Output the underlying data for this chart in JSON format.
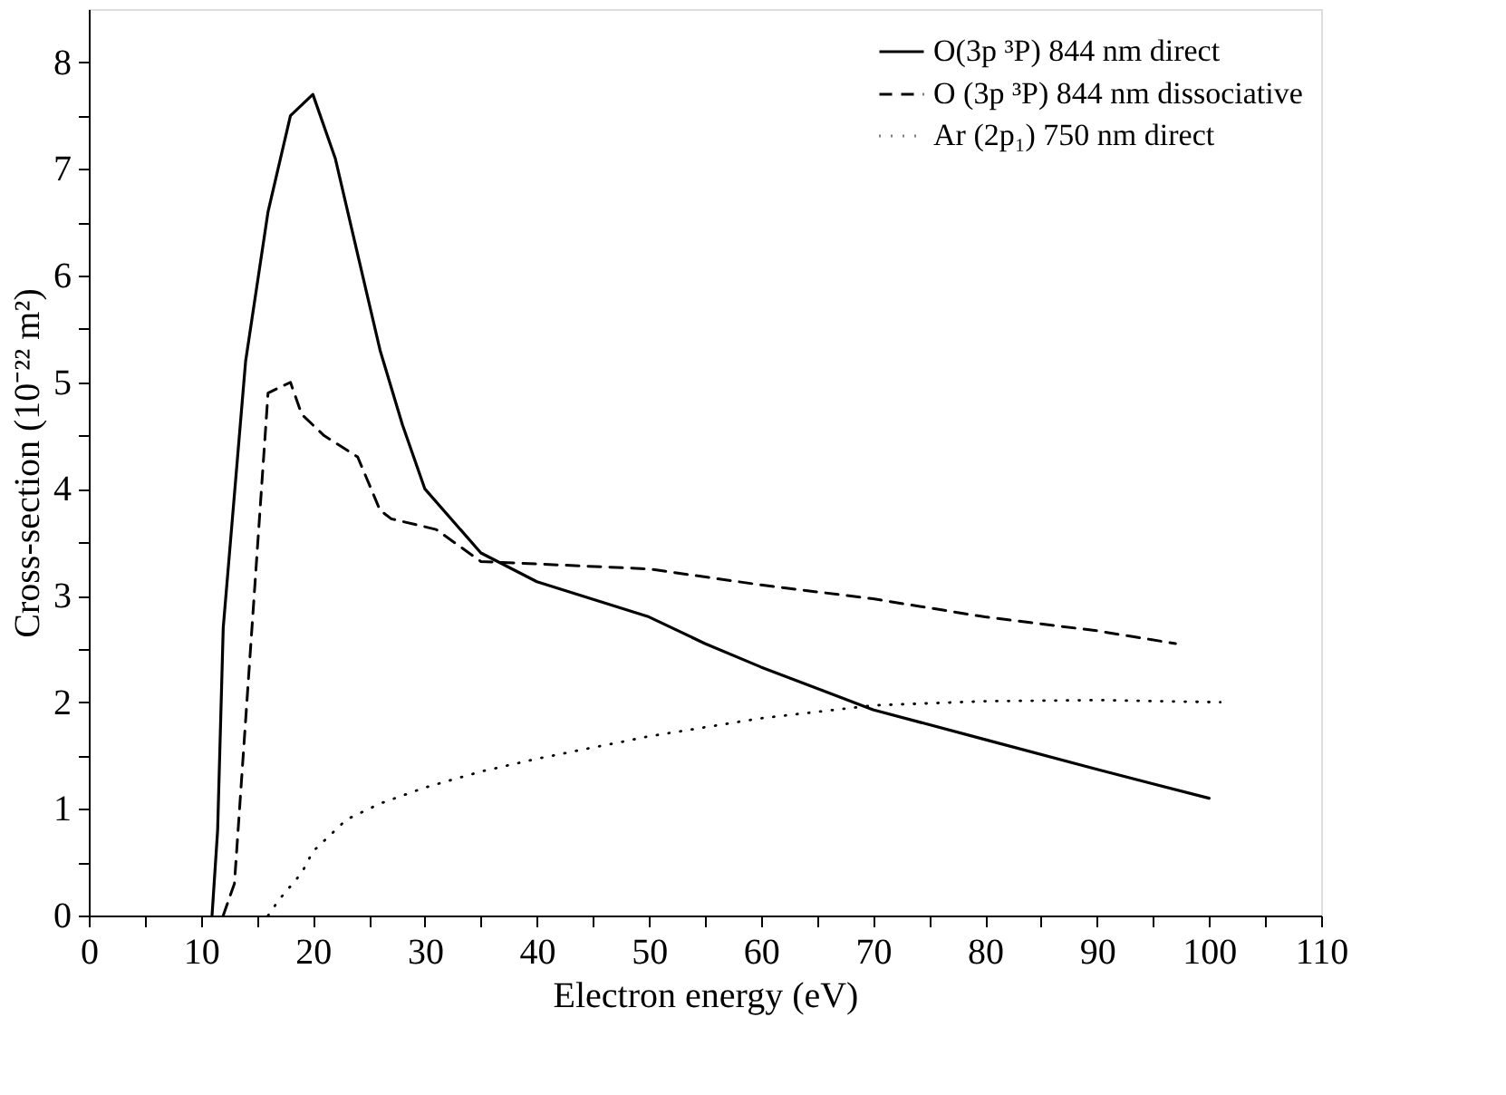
{
  "chart_data": {
    "type": "line",
    "xlabel": "Electron energy (eV)",
    "ylabel": "Cross-section (10⁻²² m²)",
    "xlim": [
      0,
      110
    ],
    "ylim": [
      0,
      8.5
    ],
    "xticks": [
      0,
      {
        "value": 5,
        "label": null
      },
      10,
      {
        "value": 15,
        "label": null
      },
      20,
      {
        "value": 25,
        "label": null
      },
      30,
      {
        "value": 35,
        "label": null
      },
      40,
      {
        "value": 45,
        "label": null
      },
      50,
      {
        "value": 55,
        "label": null
      },
      60,
      {
        "value": 65,
        "label": null
      },
      70,
      {
        "value": 75,
        "label": null
      },
      80,
      {
        "value": 85,
        "label": null
      },
      90,
      {
        "value": 95,
        "label": null
      },
      100,
      {
        "value": 105,
        "label": null
      },
      110
    ],
    "yticks": [
      0,
      {
        "value": 0.5,
        "label": null
      },
      1,
      {
        "value": 1.5,
        "label": null
      },
      2,
      {
        "value": 2.5,
        "label": null
      },
      3,
      {
        "value": 3.5,
        "label": null
      },
      4,
      {
        "value": 4.5,
        "label": null
      },
      5,
      {
        "value": 5.5,
        "label": null
      },
      6,
      {
        "value": 6.5,
        "label": null
      },
      7,
      {
        "value": 7.5,
        "label": null
      },
      8
    ],
    "grid": false,
    "legend": "top right",
    "marker": "none",
    "series": [
      {
        "name": "O(3p ³P) 844 nm direct",
        "color": "#000000",
        "line_style": "solid",
        "x": [
          11,
          11.5,
          12,
          14,
          16,
          18,
          20,
          22,
          24,
          26,
          28,
          30,
          35,
          40,
          50,
          55,
          60,
          70,
          80,
          90,
          100
        ],
        "values": [
          0,
          0.8,
          2.7,
          5.2,
          6.6,
          7.5,
          7.7,
          7.1,
          6.2,
          5.3,
          4.6,
          4.0,
          3.4,
          3.13,
          2.8,
          2.55,
          2.33,
          1.93,
          1.65,
          1.37,
          1.1
        ]
      },
      {
        "name": "O (3p ³P) 844 nm dissociative",
        "color": "#000000",
        "line_style": "dashed",
        "x": [
          12,
          13,
          16,
          18,
          19,
          21,
          24,
          26,
          27,
          31,
          35,
          50,
          60,
          70,
          80,
          90,
          97
        ],
        "values": [
          0,
          0.3,
          4.9,
          5.0,
          4.7,
          4.5,
          4.3,
          3.8,
          3.72,
          3.62,
          3.32,
          3.25,
          3.1,
          2.97,
          2.8,
          2.67,
          2.55
        ]
      },
      {
        "name": "Ar (2p₁) 750 nm direct",
        "color": "#000000",
        "line_style": "dotted",
        "x": [
          16,
          17,
          19,
          20,
          23,
          26,
          30,
          35,
          40,
          50,
          60,
          70,
          80,
          90,
          101
        ],
        "values": [
          0,
          0.15,
          0.4,
          0.6,
          0.9,
          1.05,
          1.2,
          1.35,
          1.47,
          1.68,
          1.85,
          1.97,
          2.01,
          2.02,
          2.0
        ]
      }
    ]
  }
}
